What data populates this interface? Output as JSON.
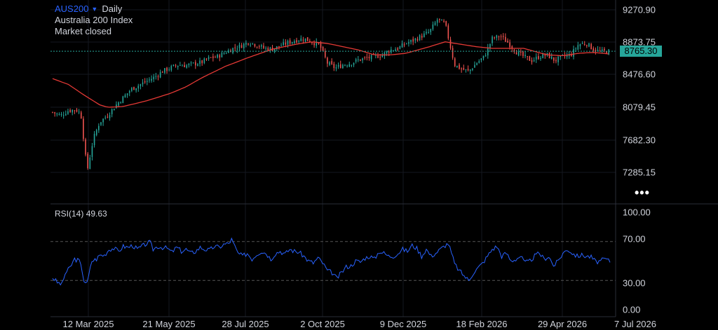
{
  "legend": {
    "symbol": "AUS200",
    "timeframe": "Daily",
    "name": "Australia 200 Index",
    "status": "Market closed"
  },
  "price_axis": [
    "9270.90",
    "8873.75",
    "8476.60",
    "8079.45",
    "7682.30",
    "7285.15"
  ],
  "current_price": "8765.30",
  "rsi_label": "RSI(14)",
  "rsi_value": "49.63",
  "rsi_axis": [
    "100.00",
    "70.00",
    "30.00",
    "0.00"
  ],
  "x_axis": [
    "12 Mar 2025",
    "21 May 2025",
    "28 Jul 2025",
    "2 Oct 2025",
    "9 Dec 2025",
    "18 Feb 2026",
    "29 Apr 2026",
    "7 Jul 2026"
  ],
  "more_icon": "more-dots-icon",
  "colors": {
    "up": "#26a69a",
    "down": "#ef5350",
    "ma": "#e53935",
    "rsi": "#2962ff",
    "current_line": "#26a69a"
  },
  "chart_data": {
    "type": "candlestick",
    "title": "AUS200 Daily",
    "ylim": [
      7150,
      9350
    ],
    "close_series": [
      [
        0,
        8020
      ],
      [
        5,
        7980
      ],
      [
        10,
        8040
      ],
      [
        15,
        8050
      ],
      [
        18,
        8000
      ],
      [
        20,
        7650
      ],
      [
        22,
        7300
      ],
      [
        24,
        7500
      ],
      [
        26,
        7700
      ],
      [
        30,
        7900
      ],
      [
        35,
        7980
      ],
      [
        40,
        8100
      ],
      [
        45,
        8200
      ],
      [
        50,
        8300
      ],
      [
        55,
        8350
      ],
      [
        60,
        8400
      ],
      [
        65,
        8450
      ],
      [
        70,
        8520
      ],
      [
        75,
        8560
      ],
      [
        80,
        8600
      ],
      [
        85,
        8590
      ],
      [
        90,
        8610
      ],
      [
        95,
        8630
      ],
      [
        100,
        8680
      ],
      [
        105,
        8700
      ],
      [
        110,
        8750
      ],
      [
        115,
        8800
      ],
      [
        120,
        8830
      ],
      [
        125,
        8880
      ],
      [
        130,
        8840
      ],
      [
        135,
        8800
      ],
      [
        140,
        8790
      ],
      [
        145,
        8830
      ],
      [
        150,
        8870
      ],
      [
        155,
        8900
      ],
      [
        160,
        8920
      ],
      [
        165,
        8880
      ],
      [
        170,
        8840
      ],
      [
        175,
        8620
      ],
      [
        180,
        8560
      ],
      [
        185,
        8600
      ],
      [
        190,
        8620
      ],
      [
        195,
        8660
      ],
      [
        200,
        8680
      ],
      [
        205,
        8700
      ],
      [
        210,
        8720
      ],
      [
        215,
        8780
      ],
      [
        220,
        8800
      ],
      [
        225,
        8860
      ],
      [
        230,
        8900
      ],
      [
        235,
        8950
      ],
      [
        240,
        9000
      ],
      [
        245,
        9150
      ],
      [
        250,
        9100
      ],
      [
        253,
        8850
      ],
      [
        256,
        8600
      ],
      [
        260,
        8550
      ],
      [
        265,
        8520
      ],
      [
        270,
        8620
      ],
      [
        275,
        8700
      ],
      [
        280,
        8920
      ],
      [
        285,
        8950
      ],
      [
        290,
        8870
      ],
      [
        295,
        8760
      ],
      [
        300,
        8700
      ],
      [
        305,
        8650
      ],
      [
        310,
        8700
      ],
      [
        315,
        8720
      ],
      [
        320,
        8650
      ],
      [
        325,
        8700
      ],
      [
        330,
        8720
      ],
      [
        335,
        8850
      ],
      [
        340,
        8860
      ],
      [
        345,
        8780
      ],
      [
        350,
        8760
      ],
      [
        355,
        8765
      ]
    ],
    "ma_series": [
      [
        0,
        8430
      ],
      [
        10,
        8360
      ],
      [
        20,
        8230
      ],
      [
        30,
        8110
      ],
      [
        35,
        8080
      ],
      [
        45,
        8090
      ],
      [
        60,
        8160
      ],
      [
        75,
        8250
      ],
      [
        85,
        8330
      ],
      [
        95,
        8440
      ],
      [
        110,
        8580
      ],
      [
        125,
        8690
      ],
      [
        140,
        8790
      ],
      [
        155,
        8850
      ],
      [
        165,
        8880
      ],
      [
        175,
        8860
      ],
      [
        185,
        8820
      ],
      [
        195,
        8780
      ],
      [
        205,
        8720
      ],
      [
        215,
        8720
      ],
      [
        225,
        8740
      ],
      [
        240,
        8820
      ],
      [
        250,
        8880
      ],
      [
        260,
        8850
      ],
      [
        270,
        8820
      ],
      [
        280,
        8800
      ],
      [
        290,
        8800
      ],
      [
        300,
        8800
      ],
      [
        315,
        8720
      ],
      [
        325,
        8710
      ],
      [
        335,
        8740
      ],
      [
        345,
        8750
      ],
      [
        355,
        8730
      ]
    ],
    "rsi_series": [
      [
        0,
        33
      ],
      [
        3,
        28
      ],
      [
        6,
        26
      ],
      [
        8,
        37
      ],
      [
        11,
        43
      ],
      [
        14,
        52
      ],
      [
        17,
        50
      ],
      [
        19,
        39
      ],
      [
        20,
        30
      ],
      [
        22,
        27
      ],
      [
        25,
        50
      ],
      [
        28,
        52
      ],
      [
        30,
        56
      ],
      [
        33,
        56
      ],
      [
        36,
        62
      ],
      [
        39,
        63
      ],
      [
        42,
        60
      ],
      [
        45,
        65
      ],
      [
        48,
        64
      ],
      [
        51,
        66
      ],
      [
        54,
        62
      ],
      [
        57,
        65
      ],
      [
        60,
        68
      ],
      [
        62,
        69
      ],
      [
        64,
        62
      ],
      [
        67,
        65
      ],
      [
        70,
        64
      ],
      [
        73,
        63
      ],
      [
        76,
        59
      ],
      [
        79,
        64
      ],
      [
        82,
        60
      ],
      [
        85,
        62
      ],
      [
        88,
        58
      ],
      [
        91,
        60
      ],
      [
        94,
        64
      ],
      [
        97,
        62
      ],
      [
        100,
        61
      ],
      [
        103,
        65
      ],
      [
        106,
        64
      ],
      [
        109,
        67
      ],
      [
        112,
        68
      ],
      [
        114,
        72
      ],
      [
        116,
        65
      ],
      [
        118,
        58
      ],
      [
        121,
        55
      ],
      [
        124,
        58
      ],
      [
        127,
        52
      ],
      [
        130,
        57
      ],
      [
        133,
        60
      ],
      [
        136,
        58
      ],
      [
        139,
        52
      ],
      [
        142,
        58
      ],
      [
        145,
        60
      ],
      [
        148,
        57
      ],
      [
        151,
        62
      ],
      [
        154,
        60
      ],
      [
        157,
        59
      ],
      [
        160,
        55
      ],
      [
        163,
        50
      ],
      [
        166,
        48
      ],
      [
        169,
        53
      ],
      [
        172,
        48
      ],
      [
        175,
        40
      ],
      [
        178,
        38
      ],
      [
        181,
        32
      ],
      [
        184,
        38
      ],
      [
        187,
        44
      ],
      [
        190,
        45
      ],
      [
        193,
        50
      ],
      [
        196,
        49
      ],
      [
        199,
        53
      ],
      [
        202,
        55
      ],
      [
        205,
        52
      ],
      [
        208,
        60
      ],
      [
        211,
        58
      ],
      [
        214,
        55
      ],
      [
        217,
        55
      ],
      [
        220,
        58
      ],
      [
        223,
        62
      ],
      [
        226,
        60
      ],
      [
        229,
        66
      ],
      [
        232,
        63
      ],
      [
        235,
        55
      ],
      [
        238,
        62
      ],
      [
        241,
        55
      ],
      [
        244,
        58
      ],
      [
        247,
        62
      ],
      [
        250,
        66
      ],
      [
        252,
        68
      ],
      [
        254,
        58
      ],
      [
        256,
        47
      ],
      [
        259,
        40
      ],
      [
        262,
        35
      ],
      [
        265,
        30
      ],
      [
        268,
        38
      ],
      [
        271,
        43
      ],
      [
        274,
        48
      ],
      [
        277,
        55
      ],
      [
        280,
        62
      ],
      [
        283,
        65
      ],
      [
        286,
        55
      ],
      [
        289,
        58
      ],
      [
        292,
        50
      ],
      [
        295,
        52
      ],
      [
        298,
        55
      ],
      [
        301,
        48
      ],
      [
        304,
        50
      ],
      [
        307,
        55
      ],
      [
        310,
        58
      ],
      [
        313,
        52
      ],
      [
        316,
        55
      ],
      [
        319,
        45
      ],
      [
        322,
        50
      ],
      [
        325,
        58
      ],
      [
        328,
        62
      ],
      [
        331,
        58
      ],
      [
        334,
        55
      ],
      [
        337,
        56
      ],
      [
        340,
        55
      ],
      [
        343,
        54
      ],
      [
        346,
        49
      ],
      [
        349,
        50
      ],
      [
        352,
        52
      ],
      [
        355,
        49.63
      ]
    ],
    "rsi_levels": [
      70,
      30
    ],
    "rsi_ylim": [
      0,
      100
    ]
  }
}
